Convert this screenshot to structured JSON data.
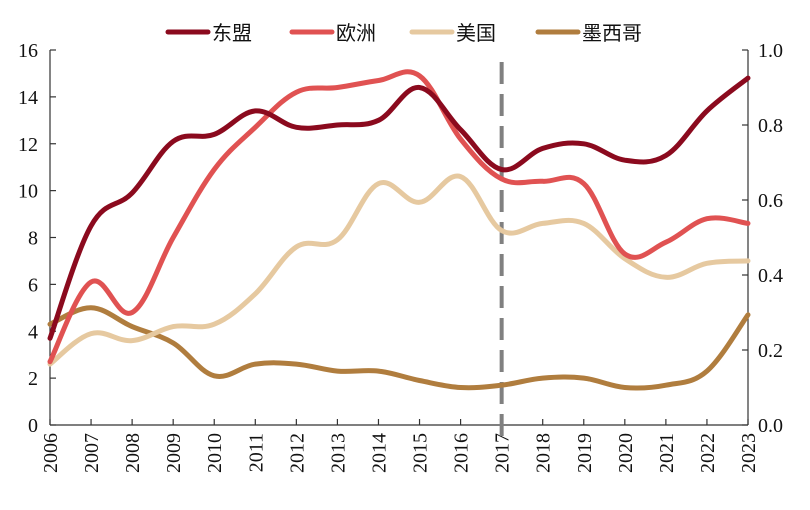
{
  "chart_data": {
    "type": "line",
    "x": [
      "2006",
      "2007",
      "2008",
      "2009",
      "2010",
      "2011",
      "2012",
      "2013",
      "2014",
      "2015",
      "2016",
      "2017",
      "2018",
      "2019",
      "2020",
      "2021",
      "2022",
      "2023"
    ],
    "series": [
      {
        "name": "东盟",
        "color": "#8B0A1E",
        "axis": "left",
        "values": [
          3.7,
          8.5,
          9.9,
          12.1,
          12.4,
          13.4,
          12.7,
          12.8,
          13.0,
          14.4,
          12.6,
          10.9,
          11.8,
          12.0,
          11.3,
          11.5,
          13.4,
          14.8
        ]
      },
      {
        "name": "欧洲",
        "color": "#E05252",
        "axis": "left",
        "values": [
          2.7,
          6.1,
          4.8,
          8.0,
          10.9,
          12.7,
          14.2,
          14.4,
          14.7,
          14.9,
          12.2,
          10.5,
          10.4,
          10.3,
          7.3,
          7.8,
          8.8,
          8.6
        ]
      },
      {
        "name": "美国",
        "color": "#E6C9A0",
        "axis": "left",
        "values": [
          2.6,
          3.9,
          3.6,
          4.2,
          4.3,
          5.6,
          7.6,
          7.9,
          10.3,
          9.5,
          10.6,
          8.3,
          8.6,
          8.6,
          7.1,
          6.3,
          6.9,
          7.0
        ]
      },
      {
        "name": "墨西哥",
        "color": "#B07D3E",
        "axis": "left",
        "values": [
          4.3,
          5.0,
          4.2,
          3.5,
          2.1,
          2.6,
          2.6,
          2.3,
          2.3,
          1.9,
          1.6,
          1.7,
          2.0,
          2.0,
          1.6,
          1.7,
          2.3,
          4.7
        ]
      }
    ],
    "ylim": [
      0,
      16
    ],
    "yticks": [
      "0",
      "2",
      "4",
      "6",
      "8",
      "10",
      "12",
      "14",
      "16"
    ],
    "y2lim": [
      0,
      1.0
    ],
    "y2ticks": [
      "0.0",
      "0.2",
      "0.4",
      "0.6",
      "0.8",
      "1.0"
    ],
    "vline_at": "2017",
    "grid": false,
    "legend_position": "top"
  }
}
